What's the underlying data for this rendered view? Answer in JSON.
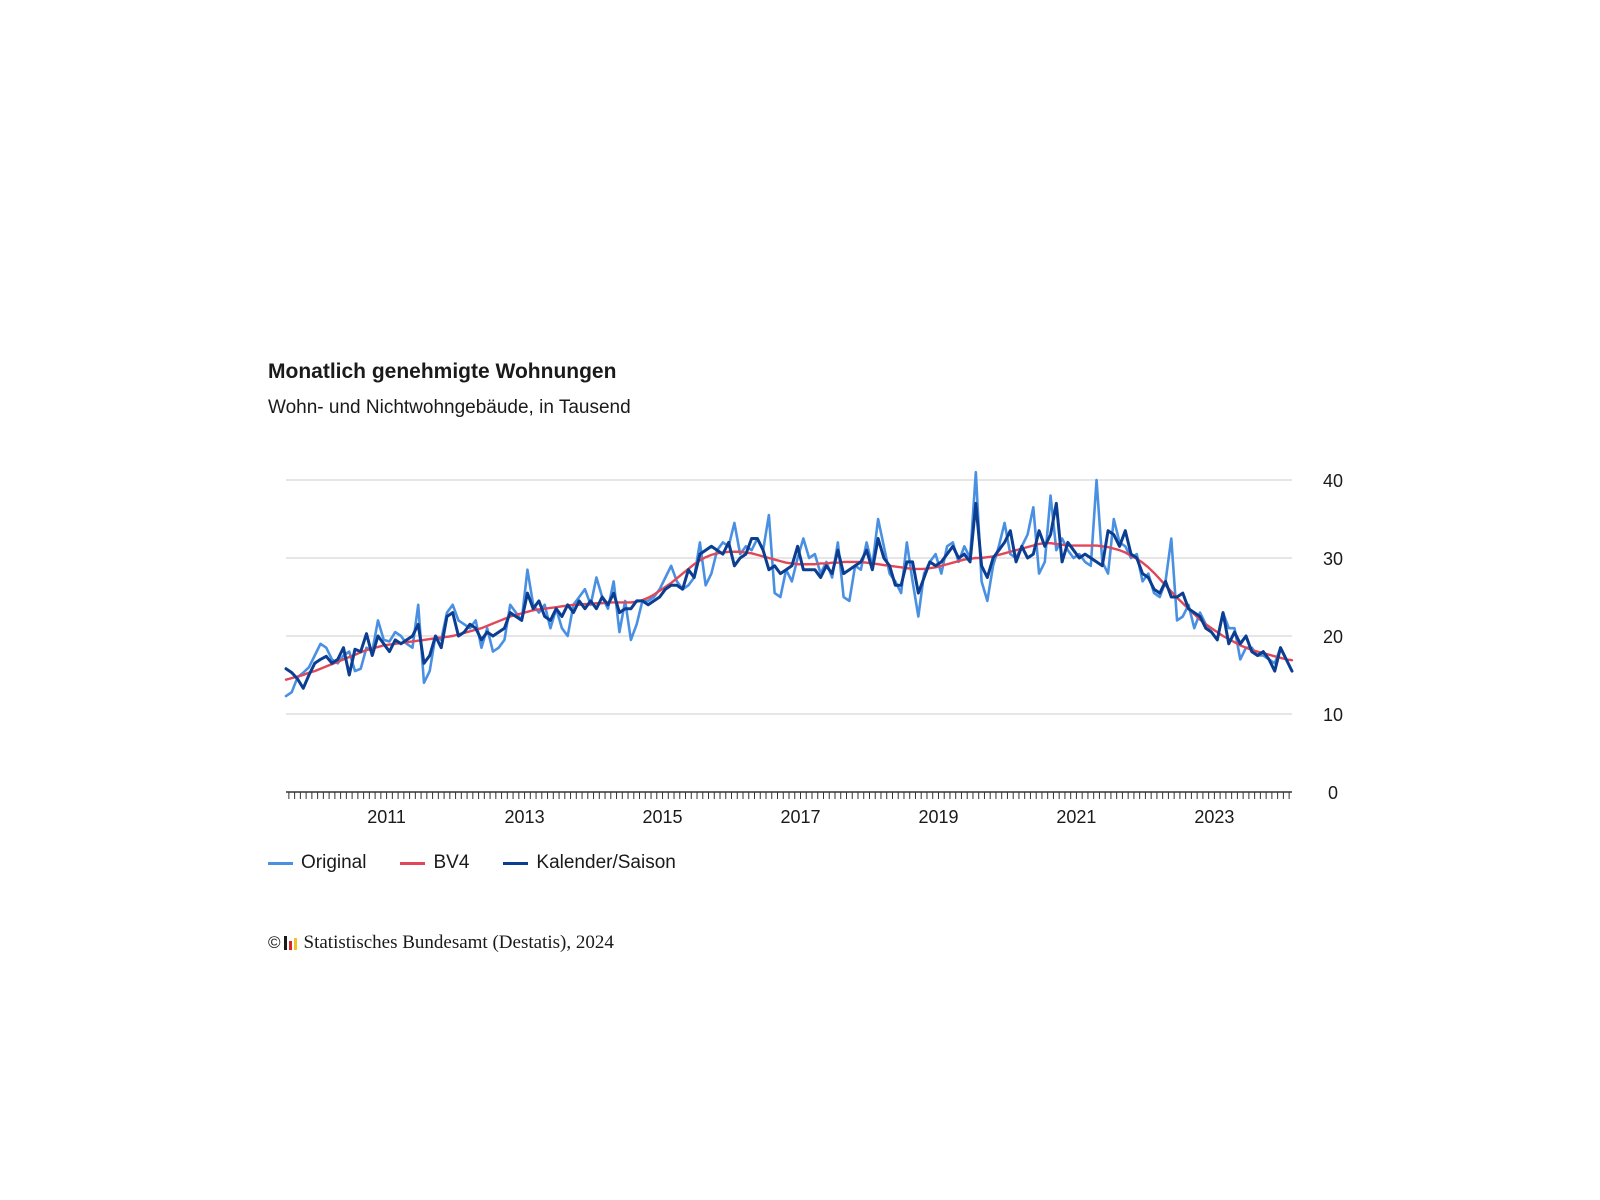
{
  "title": "Monatlich genehmigte Wohnungen",
  "subtitle": "Wohn- und Nichtwohngebäude, in Tausend",
  "source": {
    "copyright_symbol": "©",
    "text": "Statistisches Bundesamt (Destatis), 2024",
    "logo_icon": "destatis-logo-icon",
    "logo_colors": [
      "#1a1a1a",
      "#d62828",
      "#f2c12e"
    ]
  },
  "colors": {
    "original": "#4a90e2",
    "bv4": "#e0485a",
    "kalender": "#0b3d91",
    "grid": "#cccccc",
    "axis": "#333333"
  },
  "chart_data": {
    "type": "line",
    "title": "Monatlich genehmigte Wohnungen",
    "subtitle": "Wohn- und Nichtwohngebäude, in Tausend",
    "x_start": "2010-01",
    "x_end": "2024-08",
    "x_tick_labels": [
      "2011",
      "2013",
      "2015",
      "2017",
      "2019",
      "2021",
      "2023"
    ],
    "y_ticks": [
      0,
      10,
      20,
      30,
      40
    ],
    "ylim": [
      0,
      40
    ],
    "y_axis_position": "right",
    "grid": true,
    "legend_position": "bottom-left",
    "series": [
      {
        "name": "Original",
        "values": [
          12.3,
          12.8,
          14.7,
          15.3,
          16.0,
          17.5,
          19.0,
          18.5,
          17.0,
          16.5,
          17.5,
          18.0,
          15.5,
          15.8,
          18.5,
          18.0,
          22.0,
          19.5,
          19.3,
          20.5,
          20.0,
          19.0,
          18.5,
          24.0,
          14.0,
          15.5,
          20.0,
          19.5,
          23.0,
          24.0,
          22.0,
          21.5,
          21.0,
          22.0,
          18.5,
          21.0,
          18.0,
          18.5,
          19.5,
          24.0,
          23.0,
          22.0,
          28.5,
          24.0,
          23.0,
          24.0,
          21.0,
          23.5,
          21.0,
          20.0,
          24.0,
          25.0,
          26.0,
          24.0,
          27.5,
          25.0,
          23.5,
          27.0,
          20.5,
          24.5,
          19.5,
          21.5,
          24.5,
          24.5,
          25.0,
          26.0,
          27.5,
          29.0,
          27.0,
          26.0,
          26.5,
          27.5,
          32.0,
          26.5,
          28.0,
          31.0,
          32.0,
          31.5,
          34.5,
          30.5,
          31.5,
          31.0,
          32.5,
          31.0,
          35.5,
          25.5,
          25.0,
          28.5,
          27.0,
          30.0,
          32.5,
          30.0,
          30.5,
          28.0,
          29.5,
          27.5,
          32.0,
          25.0,
          24.5,
          29.0,
          28.5,
          32.0,
          29.0,
          35.0,
          31.5,
          28.0,
          27.0,
          25.5,
          32.0,
          27.0,
          22.5,
          28.0,
          29.5,
          30.5,
          28.0,
          31.5,
          32.0,
          29.5,
          31.5,
          30.0,
          41.0,
          27.0,
          24.5,
          29.0,
          31.5,
          34.5,
          30.5,
          30.0,
          31.5,
          33.0,
          36.5,
          28.0,
          29.5,
          38.0,
          31.0,
          32.5,
          31.0,
          30.0,
          30.5,
          29.5,
          29.0,
          40.0,
          29.5,
          28.0,
          35.0,
          32.0,
          31.5,
          30.0,
          30.5,
          27.0,
          28.0,
          25.5,
          25.0,
          27.0,
          32.5,
          22.0,
          22.5,
          24.0,
          21.0,
          23.0,
          21.5,
          20.5,
          19.5,
          23.0,
          21.0,
          21.0,
          17.0,
          18.5,
          18.5,
          17.5,
          17.5,
          17.0,
          16.5,
          18.5,
          17.0,
          15.5
        ]
      },
      {
        "name": "BV4",
        "values": [
          14.4,
          14.6,
          14.8,
          15.0,
          15.3,
          15.5,
          15.8,
          16.1,
          16.4,
          16.7,
          17.0,
          17.3,
          17.6,
          17.9,
          18.2,
          18.4,
          18.6,
          18.8,
          18.9,
          19.0,
          19.1,
          19.2,
          19.3,
          19.4,
          19.5,
          19.6,
          19.7,
          19.8,
          19.9,
          20.0,
          20.2,
          20.4,
          20.6,
          20.8,
          21.0,
          21.3,
          21.6,
          21.9,
          22.2,
          22.5,
          22.7,
          22.9,
          23.1,
          23.3,
          23.4,
          23.5,
          23.6,
          23.7,
          23.8,
          23.9,
          24.0,
          24.0,
          24.1,
          24.1,
          24.2,
          24.2,
          24.3,
          24.3,
          24.3,
          24.3,
          24.3,
          24.4,
          24.6,
          24.9,
          25.3,
          25.8,
          26.3,
          26.8,
          27.4,
          28.0,
          28.6,
          29.2,
          29.7,
          30.1,
          30.4,
          30.6,
          30.7,
          30.8,
          30.8,
          30.8,
          30.7,
          30.6,
          30.4,
          30.2,
          30.0,
          29.8,
          29.6,
          29.4,
          29.3,
          29.2,
          29.2,
          29.2,
          29.2,
          29.3,
          29.3,
          29.4,
          29.4,
          29.5,
          29.5,
          29.5,
          29.5,
          29.4,
          29.3,
          29.2,
          29.1,
          29.0,
          28.9,
          28.8,
          28.7,
          28.6,
          28.6,
          28.6,
          28.7,
          28.8,
          29.0,
          29.2,
          29.4,
          29.6,
          29.8,
          29.9,
          30.0,
          30.0,
          30.1,
          30.2,
          30.4,
          30.6,
          30.8,
          31.0,
          31.2,
          31.4,
          31.6,
          31.8,
          31.9,
          31.9,
          31.8,
          31.7,
          31.6,
          31.6,
          31.6,
          31.6,
          31.6,
          31.6,
          31.5,
          31.4,
          31.2,
          31.0,
          30.7,
          30.3,
          29.9,
          29.4,
          28.8,
          28.1,
          27.3,
          26.5,
          25.7,
          24.9,
          24.2,
          23.5,
          22.8,
          22.1,
          21.5,
          21.0,
          20.5,
          20.0,
          19.6,
          19.2,
          18.8,
          18.5,
          18.2,
          18.0,
          17.8,
          17.6,
          17.4,
          17.2,
          17.0,
          16.9
        ]
      },
      {
        "name": "Kalender/Saison",
        "values": [
          15.8,
          15.3,
          14.5,
          13.3,
          15.0,
          16.5,
          17.0,
          17.4,
          16.5,
          17.0,
          18.5,
          15.0,
          18.3,
          18.0,
          20.3,
          17.5,
          20.0,
          19.0,
          18.0,
          19.5,
          19.0,
          19.5,
          20.0,
          21.5,
          16.5,
          17.5,
          20.0,
          18.5,
          22.5,
          23.0,
          20.0,
          20.5,
          21.5,
          21.0,
          19.5,
          20.5,
          20.0,
          20.5,
          21.0,
          23.0,
          22.5,
          22.0,
          25.5,
          23.5,
          24.5,
          22.5,
          22.0,
          23.5,
          22.5,
          24.0,
          23.0,
          24.5,
          23.5,
          24.5,
          23.5,
          25.0,
          24.0,
          25.5,
          23.0,
          23.5,
          23.5,
          24.5,
          24.5,
          24.0,
          24.5,
          25.0,
          26.0,
          26.5,
          26.5,
          26.0,
          28.5,
          27.5,
          30.5,
          31.0,
          31.5,
          31.0,
          30.5,
          32.0,
          29.0,
          30.0,
          30.5,
          32.5,
          32.5,
          31.0,
          28.5,
          29.0,
          28.0,
          28.5,
          29.0,
          31.5,
          28.5,
          28.5,
          28.5,
          27.5,
          29.0,
          28.0,
          31.0,
          28.0,
          28.5,
          29.0,
          29.5,
          31.0,
          28.5,
          32.5,
          30.0,
          29.0,
          26.5,
          26.5,
          29.5,
          29.5,
          25.5,
          27.5,
          29.5,
          29.0,
          29.5,
          30.5,
          31.5,
          30.0,
          30.5,
          29.5,
          37.0,
          29.0,
          27.5,
          30.0,
          31.0,
          32.0,
          33.5,
          29.5,
          31.5,
          30.0,
          30.5,
          33.5,
          31.5,
          33.0,
          37.0,
          29.5,
          32.0,
          31.0,
          30.0,
          30.5,
          30.0,
          29.5,
          29.0,
          33.5,
          33.0,
          31.5,
          33.5,
          30.5,
          30.0,
          28.0,
          27.5,
          26.0,
          25.5,
          27.0,
          25.0,
          25.0,
          25.5,
          23.5,
          23.0,
          22.5,
          21.0,
          20.5,
          19.5,
          23.0,
          19.0,
          20.5,
          19.0,
          20.0,
          18.0,
          17.5,
          18.0,
          17.0,
          15.5,
          18.5,
          17.0,
          15.5
        ]
      }
    ]
  }
}
